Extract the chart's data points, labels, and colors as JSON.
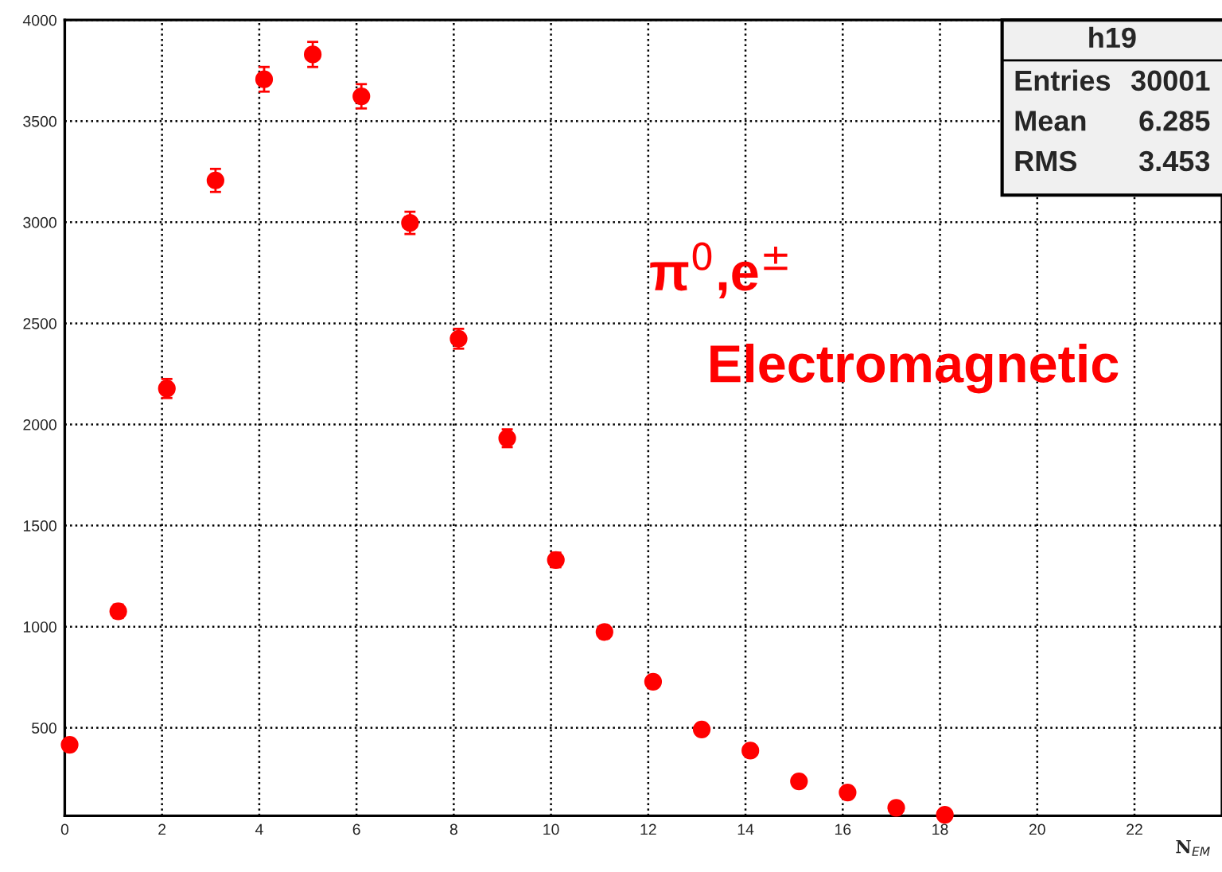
{
  "chart_data": {
    "type": "scatter",
    "xlabel": "N$_{EM}$",
    "x": [
      0.1,
      1.1,
      2.1,
      3.1,
      4.1,
      5.1,
      6.1,
      7.1,
      8.1,
      9.1,
      10.1,
      11.1,
      12.1,
      13.1,
      14.1,
      15.1,
      16.1,
      17.1,
      18.1
    ],
    "series": [
      {
        "color": "#ff0000",
        "values": [
          416,
          1076,
          2178,
          3207,
          3707,
          3830,
          3623,
          2997,
          2424,
          1932,
          1330,
          974,
          728,
          492,
          387,
          235,
          180,
          104,
          70
        ],
        "errors": [
          20,
          33,
          47,
          57,
          61,
          62,
          60,
          55,
          49,
          44,
          36,
          31,
          27,
          22,
          20,
          15,
          13,
          10,
          8
        ]
      }
    ],
    "xlim": [
      0,
      23.8
    ],
    "ylim": [
      65,
      4000
    ],
    "xticks": [
      0,
      2,
      4,
      6,
      8,
      10,
      12,
      14,
      16,
      18,
      20,
      22
    ],
    "yticks": [
      500,
      1000,
      1500,
      2000,
      2500,
      3000,
      3500,
      4000
    ],
    "grid": true,
    "marker": "circle",
    "annotations": [
      "π$^{0}$,e$^{±}$",
      "Electromagnetic",
      "h19",
      "Entries",
      "30001",
      "Mean",
      "6.285",
      "RMS",
      "3.453"
    ]
  }
}
